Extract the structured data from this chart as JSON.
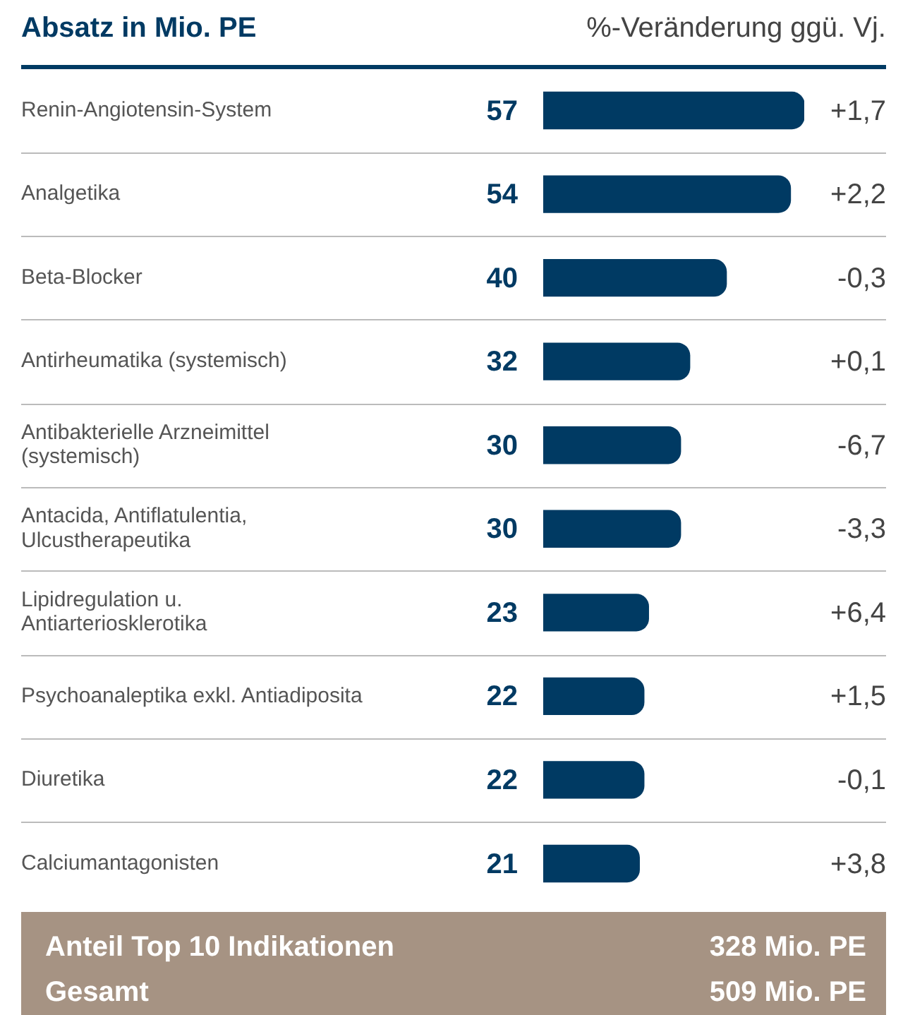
{
  "chart_data": {
    "type": "bar",
    "orientation": "horizontal",
    "title": "Absatz in Mio. PE",
    "subtitle": "%-Veränderung ggü. Vj.",
    "categories": [
      "Renin-Angiotensin-System",
      "Analgetika",
      "Beta-Blocker",
      "Antirheumatika (systemisch)",
      "Antibakterielle Arzneimittel\n(systemisch)",
      "Antacida, Antiflatulentia,\nUlcustherapeutika",
      "Lipidregulation u.\nAntiarteriosklerotika",
      "Psychoanaleptika exkl. Antiadiposita",
      "Diuretika",
      "Calciumantagonisten"
    ],
    "values": [
      57,
      54,
      40,
      32,
      30,
      30,
      23,
      22,
      22,
      21
    ],
    "color": "#003a63",
    "data_labels": true,
    "grid": "y",
    "legend": false,
    "annotations": [
      "+1,7",
      "+2,2",
      "-0,3",
      "+0,1",
      "-6,7",
      "-3,3",
      "+6,4",
      "+1,5",
      "-0,1",
      "+3,8",
      "Anteil Top 10 Indikationen",
      "328 Mio. PE",
      "Gesamt",
      "509 Mio. PE"
    ]
  }
}
